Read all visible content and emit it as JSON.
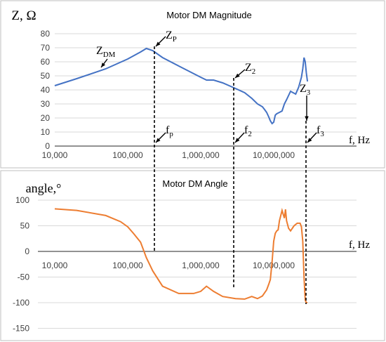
{
  "colors": {
    "magnitude": "#4472C4",
    "angle": "#ED7D31",
    "grid": "#d9d9d9",
    "annotation": "#000000"
  },
  "chart_data": [
    {
      "type": "line",
      "title": "Motor DM Magnitude",
      "ylabel": "Z, Ω",
      "xlabel": "f, Hz",
      "x_scale": "log",
      "xlim": [
        10000,
        30000000
      ],
      "ylim": [
        0,
        80
      ],
      "grid": "horizontal",
      "x_ticks": [
        "10,000",
        "100,000",
        "1,000,000",
        "10,000,000"
      ],
      "y_ticks": [
        "0",
        "10",
        "20",
        "30",
        "40",
        "50",
        "60",
        "70",
        "80"
      ],
      "series": [
        {
          "x": [
            10000,
            20000,
            50000,
            100000,
            150000,
            180000,
            220000,
            300000,
            500000,
            1000000,
            1200000,
            1500000,
            2000000,
            3000000,
            4000000,
            5000000,
            6000000,
            7000000,
            7500000,
            8000000,
            8500000,
            9000000,
            9500000,
            10000000,
            10500000,
            11000000,
            12000000,
            13000000,
            14000000,
            15000000,
            17000000,
            20000000,
            22000000,
            24000000,
            25000000,
            26000000,
            27000000,
            28000000,
            29000000
          ],
          "y": [
            43,
            48,
            55,
            62,
            67,
            69.5,
            68,
            63,
            57,
            49,
            47,
            47,
            45,
            41,
            38,
            34,
            30,
            28,
            26,
            24,
            21,
            18,
            16,
            17,
            22,
            23,
            24,
            25,
            30,
            33,
            39,
            37,
            42,
            49,
            55,
            63,
            60,
            52,
            46
          ]
        }
      ],
      "annotations": [
        {
          "label": "Z",
          "subscript": "DM",
          "x": 50000,
          "y": 55
        },
        {
          "label": "Z",
          "subscript": "P",
          "x": 180000,
          "y": 69.5
        },
        {
          "label": "Z",
          "subscript": "2",
          "x": 1200000,
          "y": 47
        },
        {
          "label": "Z",
          "subscript": "3",
          "x": 9500000,
          "y": 16
        },
        {
          "label": "f",
          "subscript": "p",
          "x": 180000
        },
        {
          "label": "f",
          "subscript": "2",
          "x": 1200000
        },
        {
          "label": "f",
          "subscript": "3",
          "x": 9500000
        }
      ]
    },
    {
      "type": "line",
      "title": "Motor DM Angle",
      "ylabel": "angle,°",
      "xlabel": "f, Hz",
      "x_scale": "log",
      "xlim": [
        10000,
        30000000
      ],
      "ylim": [
        -150,
        100
      ],
      "grid": "horizontal",
      "x_ticks": [
        "10,000",
        "100,000",
        "1,000,000",
        "10,000,000"
      ],
      "y_ticks": [
        "100",
        "50",
        "0",
        "-50",
        "-100",
        "-150"
      ],
      "series": [
        {
          "x": [
            10000,
            20000,
            50000,
            80000,
            100000,
            120000,
            150000,
            180000,
            220000,
            300000,
            500000,
            800000,
            1000000,
            1200000,
            1500000,
            2000000,
            3000000,
            4000000,
            5000000,
            6000000,
            7000000,
            8000000,
            8500000,
            9000000,
            9500000,
            10000000,
            10500000,
            11000000,
            11500000,
            12000000,
            13000000,
            14000000,
            14500000,
            15000000,
            16000000,
            17000000,
            19000000,
            21000000,
            23000000,
            24000000,
            25000000,
            26000000,
            27000000,
            28000000,
            29000000
          ],
          "y": [
            83,
            80,
            70,
            58,
            48,
            35,
            18,
            -12,
            -38,
            -68,
            -82,
            -82,
            -78,
            -68,
            -78,
            -88,
            -92,
            -93,
            -88,
            -92,
            -87,
            -75,
            -65,
            -55,
            -20,
            20,
            35,
            40,
            42,
            60,
            80,
            65,
            82,
            60,
            45,
            40,
            50,
            55,
            55,
            48,
            20,
            -50,
            -95,
            -100,
            -100
          ]
        }
      ]
    }
  ]
}
